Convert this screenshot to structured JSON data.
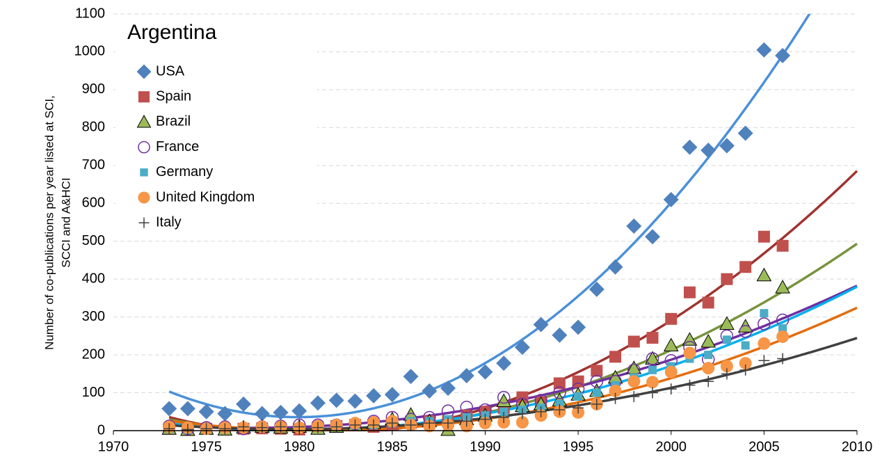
{
  "chart_data": {
    "type": "scatter",
    "title": "Argentina",
    "y_label": [
      "Number of co-publications per year listed at SCI,",
      "SCCI and A&HCI"
    ],
    "xlim": [
      1970,
      2010
    ],
    "xticks": [
      1970,
      1975,
      1980,
      1985,
      1990,
      1995,
      2000,
      2005,
      2010
    ],
    "ylim": [
      0,
      1100
    ],
    "yticks": [
      0,
      100,
      200,
      300,
      400,
      500,
      600,
      700,
      800,
      900,
      1000,
      1100
    ],
    "grid": true,
    "legend": "upper left",
    "trendline": {
      "order": 2
    },
    "x": [
      1973,
      1974,
      1975,
      1976,
      1977,
      1978,
      1979,
      1980,
      1981,
      1982,
      1983,
      1984,
      1985,
      1986,
      1987,
      1988,
      1989,
      1990,
      1991,
      1992,
      1993,
      1994,
      1995,
      1996,
      1997,
      1998,
      1999,
      2000,
      2001,
      2002,
      2003,
      2004,
      2005,
      2006
    ],
    "series": [
      {
        "name": "USA",
        "color": "#4f81bd",
        "trendline_color": "#4a90d9",
        "marker": "diamond",
        "values": [
          58,
          58,
          50,
          45,
          70,
          45,
          48,
          52,
          73,
          80,
          78,
          92,
          95,
          143,
          105,
          112,
          145,
          155,
          178,
          220,
          280,
          252,
          273,
          373,
          432,
          540,
          512,
          610,
          748,
          740,
          752,
          785,
          1005,
          990
        ]
      },
      {
        "name": "Spain",
        "color": "#c0504d",
        "trendline_color": "#a0332f",
        "marker": "square",
        "values": [
          5,
          2,
          5,
          3,
          5,
          6,
          5,
          3,
          8,
          12,
          15,
          10,
          15,
          20,
          25,
          25,
          40,
          50,
          60,
          88,
          75,
          125,
          130,
          158,
          195,
          235,
          245,
          295,
          365,
          338,
          400,
          432,
          512,
          488
        ]
      },
      {
        "name": "Brazil",
        "color": "#9bbb59",
        "trendline_color": "#77933c",
        "marker": "triangle",
        "values": [
          5,
          2,
          5,
          3,
          8,
          10,
          8,
          10,
          5,
          10,
          15,
          20,
          30,
          42,
          25,
          2,
          30,
          40,
          78,
          65,
          70,
          80,
          95,
          105,
          140,
          165,
          190,
          225,
          240,
          235,
          282,
          275,
          410,
          378
        ]
      },
      {
        "name": "France",
        "color": "#7030a0",
        "trendline_color": "#7030a0",
        "marker": "open-circle",
        "values": [
          12,
          5,
          8,
          10,
          5,
          10,
          12,
          15,
          15,
          15,
          18,
          25,
          35,
          30,
          35,
          52,
          62,
          55,
          88,
          70,
          80,
          100,
          110,
          130,
          130,
          160,
          190,
          185,
          220,
          188,
          250,
          262,
          282,
          292
        ]
      },
      {
        "name": "Germany",
        "color": "#4bacc6",
        "trendline_color": "#00b0f0",
        "marker": "small-square",
        "values": [
          5,
          2,
          5,
          5,
          8,
          8,
          10,
          8,
          10,
          12,
          15,
          15,
          20,
          25,
          25,
          30,
          35,
          40,
          50,
          55,
          60,
          70,
          90,
          100,
          120,
          140,
          160,
          170,
          190,
          200,
          240,
          225,
          310,
          270
        ]
      },
      {
        "name": "United Kingdom",
        "color": "#f79646",
        "trendline_color": "#e46c0a",
        "marker": "circle",
        "values": [
          10,
          8,
          5,
          8,
          8,
          10,
          10,
          8,
          12,
          15,
          20,
          22,
          25,
          15,
          12,
          15,
          12,
          20,
          22,
          22,
          40,
          50,
          48,
          70,
          105,
          130,
          128,
          155,
          205,
          165,
          170,
          178,
          230,
          248
        ]
      },
      {
        "name": "Italy",
        "color": "#404040",
        "trendline_color": "#404040",
        "marker": "plus",
        "values": [
          5,
          3,
          5,
          5,
          10,
          8,
          10,
          10,
          8,
          10,
          15,
          15,
          20,
          15,
          20,
          20,
          25,
          30,
          35,
          45,
          50,
          55,
          60,
          70,
          85,
          90,
          100,
          110,
          120,
          130,
          150,
          160,
          185,
          190
        ]
      }
    ]
  }
}
